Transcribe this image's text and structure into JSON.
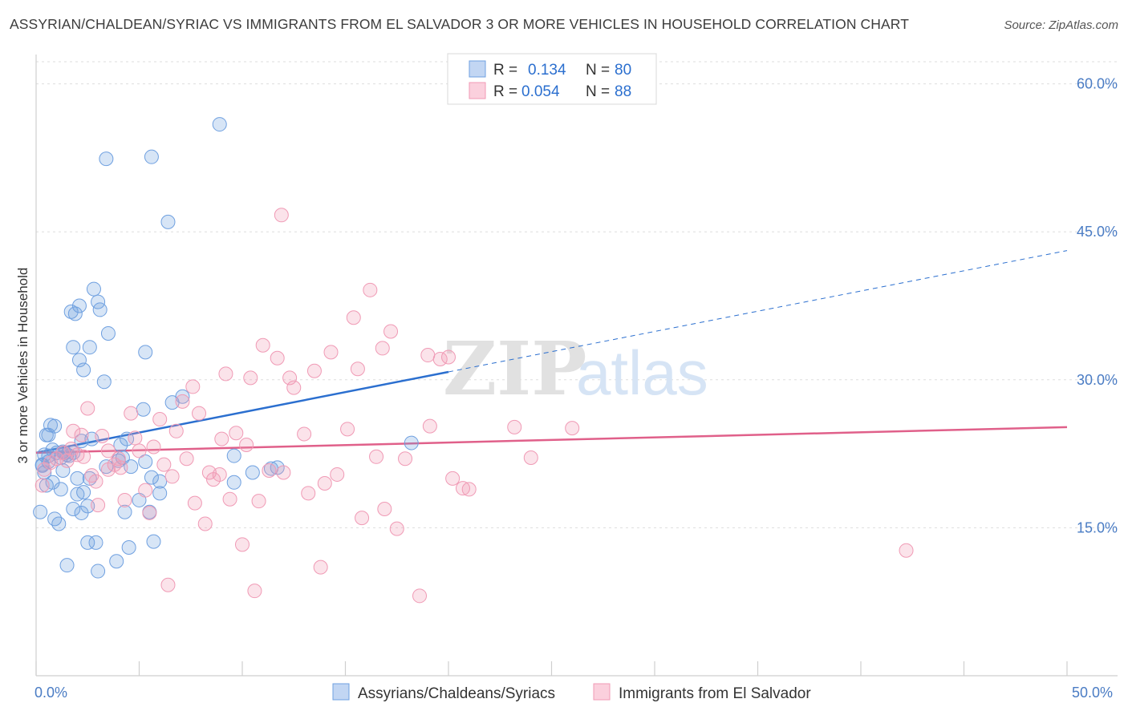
{
  "title": "ASSYRIAN/CHALDEAN/SYRIAC VS IMMIGRANTS FROM EL SALVADOR 3 OR MORE VEHICLES IN HOUSEHOLD CORRELATION CHART",
  "source": "Source: ZipAtlas.com",
  "legend": {
    "r_label": "R =",
    "n_label": "N =",
    "rows": [
      {
        "r": "0.134",
        "n": "80"
      },
      {
        "r": "0.054",
        "n": "88"
      }
    ]
  },
  "colors": {
    "blue": "#6fa0e0",
    "blue_line": "#2b6fcf",
    "pink": "#f09ab5",
    "pink_line": "#e0608a",
    "tick_text": "#4a7cc4",
    "grid": "#dddddd"
  },
  "chart_data": {
    "type": "scatter",
    "title": "ASSYRIAN/CHALDEAN/SYRIAC VS IMMIGRANTS FROM EL SALVADOR 3 OR MORE VEHICLES IN HOUSEHOLD CORRELATION CHART",
    "xlabel": "",
    "ylabel": "3 or more Vehicles in Household",
    "xlim": [
      0,
      50
    ],
    "ylim": [
      0,
      62
    ],
    "x_tick_labels": [
      "0.0%",
      "50.0%"
    ],
    "y_ticks": [
      15,
      30,
      45,
      60
    ],
    "y_tick_labels": [
      "15.0%",
      "30.0%",
      "45.0%",
      "60.0%"
    ],
    "grid": true,
    "legend_position": "top-center",
    "watermark": "ZIPatlas",
    "series": [
      {
        "name": "Assyrians/Chaldeans/Syriacs",
        "color": "#6fa0e0",
        "trend": {
          "x": [
            0,
            20
          ],
          "y": [
            22.6,
            30.8
          ],
          "dashed_to": [
            50,
            43.1
          ]
        },
        "points": [
          [
            0.2,
            16.6
          ],
          [
            0.3,
            21.3
          ],
          [
            0.4,
            20.6
          ],
          [
            0.5,
            19.3
          ],
          [
            0.4,
            22.4
          ],
          [
            0.6,
            24.4
          ],
          [
            0.6,
            22.3
          ],
          [
            0.6,
            21.7
          ],
          [
            0.7,
            25.4
          ],
          [
            0.8,
            19.6
          ],
          [
            0.8,
            22.9
          ],
          [
            0.9,
            25.3
          ],
          [
            0.9,
            15.9
          ],
          [
            1.0,
            22.6
          ],
          [
            1.1,
            15.4
          ],
          [
            1.2,
            18.9
          ],
          [
            1.2,
            22.1
          ],
          [
            1.3,
            20.8
          ],
          [
            1.4,
            22.6
          ],
          [
            1.5,
            11.2
          ],
          [
            1.6,
            22.3
          ],
          [
            1.7,
            36.9
          ],
          [
            1.8,
            33.3
          ],
          [
            1.8,
            16.9
          ],
          [
            1.9,
            36.7
          ],
          [
            2.0,
            20.0
          ],
          [
            2.0,
            18.4
          ],
          [
            2.1,
            32.0
          ],
          [
            2.1,
            37.5
          ],
          [
            2.2,
            16.5
          ],
          [
            2.3,
            18.6
          ],
          [
            2.3,
            31.0
          ],
          [
            2.5,
            17.2
          ],
          [
            2.5,
            13.5
          ],
          [
            2.6,
            20.0
          ],
          [
            2.6,
            33.3
          ],
          [
            2.7,
            24.0
          ],
          [
            2.8,
            39.2
          ],
          [
            2.9,
            13.5
          ],
          [
            3.0,
            37.9
          ],
          [
            3.0,
            10.6
          ],
          [
            3.1,
            37.1
          ],
          [
            3.3,
            29.8
          ],
          [
            3.4,
            21.2
          ],
          [
            3.4,
            52.4
          ],
          [
            3.5,
            34.7
          ],
          [
            3.9,
            11.6
          ],
          [
            4.1,
            23.4
          ],
          [
            4.2,
            22.1
          ],
          [
            4.3,
            16.6
          ],
          [
            4.4,
            24.0
          ],
          [
            4.5,
            13.0
          ],
          [
            4.6,
            21.2
          ],
          [
            5.0,
            17.8
          ],
          [
            5.2,
            27.0
          ],
          [
            5.3,
            32.8
          ],
          [
            5.3,
            21.7
          ],
          [
            5.5,
            16.6
          ],
          [
            5.6,
            20.1
          ],
          [
            5.6,
            52.6
          ],
          [
            5.7,
            13.6
          ],
          [
            6.0,
            19.7
          ],
          [
            6.0,
            18.5
          ],
          [
            6.4,
            46.0
          ],
          [
            6.6,
            27.7
          ],
          [
            7.1,
            28.3
          ],
          [
            8.9,
            55.9
          ],
          [
            9.6,
            19.6
          ],
          [
            9.6,
            22.3
          ],
          [
            10.5,
            20.6
          ],
          [
            11.4,
            21.0
          ],
          [
            11.7,
            21.1
          ],
          [
            18.2,
            23.6
          ],
          [
            0.3,
            21.4
          ],
          [
            0.5,
            24.4
          ],
          [
            1.3,
            22.7
          ],
          [
            1.5,
            22.4
          ],
          [
            1.8,
            22.6
          ],
          [
            2.2,
            23.8
          ],
          [
            4.0,
            21.8
          ]
        ]
      },
      {
        "name": "Immigrants from El Salvador",
        "color": "#f09ab5",
        "trend": {
          "x": [
            0,
            50
          ],
          "y": [
            22.6,
            25.2
          ]
        },
        "points": [
          [
            0.3,
            19.3
          ],
          [
            0.4,
            20.9
          ],
          [
            0.7,
            21.6
          ],
          [
            1.0,
            22.0
          ],
          [
            1.3,
            22.6
          ],
          [
            1.5,
            21.8
          ],
          [
            1.7,
            23.0
          ],
          [
            1.8,
            24.8
          ],
          [
            2.0,
            22.4
          ],
          [
            2.2,
            24.4
          ],
          [
            2.3,
            22.2
          ],
          [
            2.5,
            27.1
          ],
          [
            2.7,
            20.3
          ],
          [
            3.0,
            17.3
          ],
          [
            3.2,
            24.3
          ],
          [
            3.5,
            22.8
          ],
          [
            3.8,
            21.4
          ],
          [
            4.0,
            22.0
          ],
          [
            4.1,
            21.1
          ],
          [
            4.3,
            17.8
          ],
          [
            4.6,
            26.6
          ],
          [
            4.8,
            24.1
          ],
          [
            5.0,
            22.8
          ],
          [
            5.3,
            18.8
          ],
          [
            5.5,
            16.5
          ],
          [
            5.7,
            23.2
          ],
          [
            6.0,
            26.0
          ],
          [
            6.2,
            21.4
          ],
          [
            6.4,
            9.2
          ],
          [
            6.6,
            20.2
          ],
          [
            6.8,
            24.8
          ],
          [
            7.1,
            27.8
          ],
          [
            7.3,
            22.0
          ],
          [
            7.6,
            29.3
          ],
          [
            7.7,
            17.5
          ],
          [
            7.9,
            26.6
          ],
          [
            8.2,
            15.4
          ],
          [
            8.4,
            20.6
          ],
          [
            8.6,
            19.9
          ],
          [
            8.9,
            20.4
          ],
          [
            9.0,
            24.0
          ],
          [
            9.2,
            30.6
          ],
          [
            9.4,
            17.9
          ],
          [
            9.7,
            24.6
          ],
          [
            10.0,
            13.3
          ],
          [
            10.2,
            23.4
          ],
          [
            10.4,
            30.2
          ],
          [
            10.6,
            8.6
          ],
          [
            10.8,
            17.7
          ],
          [
            11.0,
            33.5
          ],
          [
            11.3,
            20.8
          ],
          [
            11.7,
            32.2
          ],
          [
            12.0,
            20.6
          ],
          [
            12.3,
            30.2
          ],
          [
            12.5,
            29.2
          ],
          [
            13.0,
            24.5
          ],
          [
            13.2,
            18.5
          ],
          [
            13.5,
            30.9
          ],
          [
            13.8,
            11.0
          ],
          [
            14.0,
            19.5
          ],
          [
            14.3,
            32.8
          ],
          [
            14.6,
            20.4
          ],
          [
            15.1,
            25.0
          ],
          [
            15.4,
            36.3
          ],
          [
            15.6,
            31.1
          ],
          [
            15.8,
            16.0
          ],
          [
            16.2,
            39.1
          ],
          [
            16.5,
            22.2
          ],
          [
            16.8,
            33.2
          ],
          [
            16.9,
            16.9
          ],
          [
            17.2,
            34.9
          ],
          [
            17.5,
            14.9
          ],
          [
            17.9,
            22.0
          ],
          [
            18.6,
            8.1
          ],
          [
            19.0,
            32.5
          ],
          [
            19.1,
            25.3
          ],
          [
            19.6,
            32.1
          ],
          [
            20.0,
            32.3
          ],
          [
            20.2,
            20.0
          ],
          [
            20.7,
            19.0
          ],
          [
            21.0,
            18.9
          ],
          [
            23.2,
            25.2
          ],
          [
            24.0,
            22.1
          ],
          [
            26.0,
            25.1
          ],
          [
            42.2,
            12.7
          ],
          [
            11.9,
            46.7
          ],
          [
            3.5,
            20.9
          ],
          [
            2.9,
            19.7
          ]
        ]
      }
    ]
  },
  "bottom_legend": {
    "items": [
      "Assyrians/Chaldeans/Syriacs",
      "Immigrants from El Salvador"
    ]
  }
}
